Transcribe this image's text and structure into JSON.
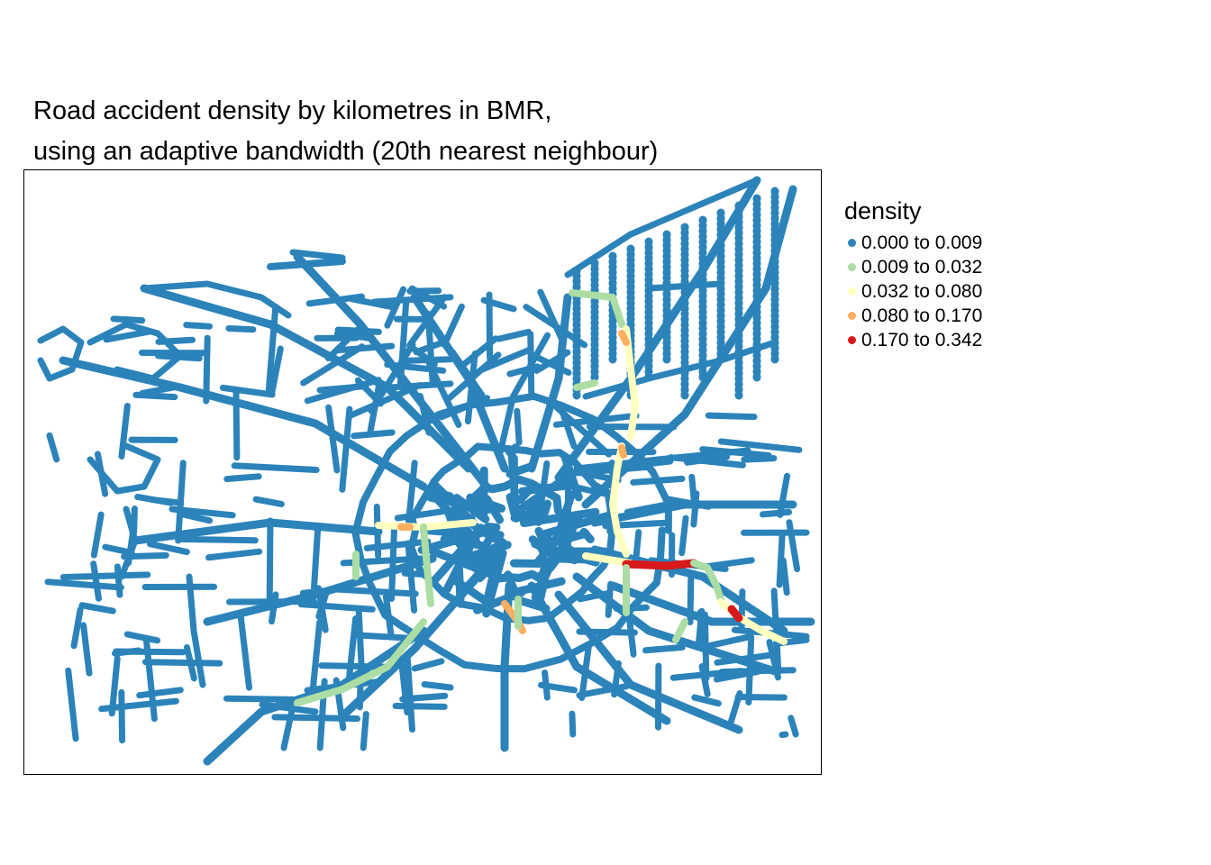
{
  "title": {
    "line1": "Road accident density by kilometres in BMR,",
    "line2": "using an adaptive bandwidth (20th nearest neighbour)"
  },
  "legend": {
    "title": "density",
    "items": [
      {
        "label": "0.000 to 0.009",
        "color": "#2b83ba"
      },
      {
        "label": "0.009 to 0.032",
        "color": "#abdda4"
      },
      {
        "label": "0.032 to 0.080",
        "color": "#ffffbf"
      },
      {
        "label": "0.080 to 0.170",
        "color": "#fdae61"
      },
      {
        "label": "0.170 to 0.342",
        "color": "#d7191c"
      }
    ]
  },
  "colors": {
    "road": "#2b83ba",
    "edge": "#000000"
  }
}
